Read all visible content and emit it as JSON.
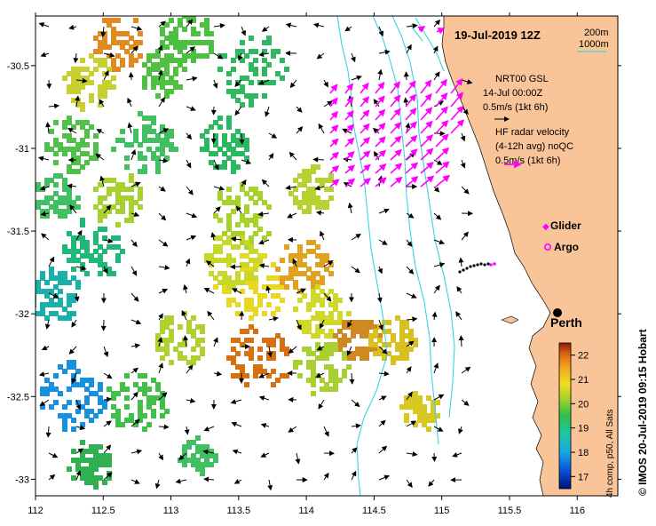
{
  "map": {
    "title": "19-Jul-2019 12Z",
    "credit": "© IMOS 20-Jul-2019 09:15 Hobart",
    "x_ticks": [
      "112",
      "112.5",
      "113",
      "113.5",
      "114",
      "114.5",
      "115",
      "115.5",
      "116"
    ],
    "y_ticks": [
      "-30.5",
      "-31",
      "-31.5",
      "-32",
      "-32.5",
      "-33"
    ],
    "x_range": [
      112,
      116.3
    ],
    "y_range": [
      -30.2,
      -33.1
    ],
    "land_color": "#f8c498",
    "isobath_color": "#3ad4e0",
    "isobath_legend": [
      "200m",
      "1000m"
    ],
    "model_label": [
      "NRT00 GSL",
      "14-Jul 00:00Z",
      "0.5m/s (1kt 6h)"
    ],
    "radar_label": [
      "HF radar velocity",
      "(4-12h avg) noQC",
      "0.5m/s (1kt 6h)"
    ],
    "radar_color": "#ff00ff",
    "legend": {
      "glider": "Glider",
      "argo": "Argo"
    },
    "place": {
      "name": "Perth",
      "lon": 115.86,
      "lat": -31.95
    },
    "colorbar": {
      "label": "4h comp, p50, All Sats",
      "ticks": [
        "22",
        "21",
        "20",
        "19",
        "18",
        "17"
      ],
      "range": [
        16.5,
        22.5
      ]
    }
  }
}
